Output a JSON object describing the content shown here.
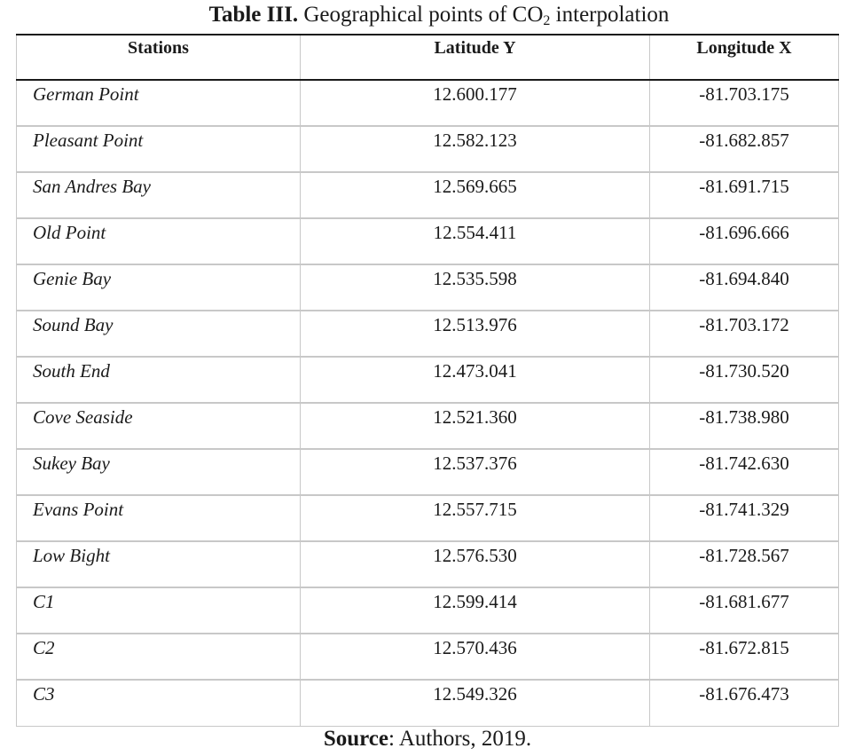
{
  "caption": {
    "label": "Table III.",
    "text_before_sub": "Geographical points of CO",
    "subscript": "2",
    "text_after_sub": " interpolation"
  },
  "table": {
    "headers": [
      "Stations",
      "Latitude Y",
      "Longitude X"
    ],
    "rows": [
      {
        "station": "German Point",
        "latitude": "12.600.177",
        "longitude": "-81.703.175"
      },
      {
        "station": "Pleasant Point",
        "latitude": "12.582.123",
        "longitude": "-81.682.857"
      },
      {
        "station": "San Andres Bay",
        "latitude": "12.569.665",
        "longitude": "-81.691.715"
      },
      {
        "station": "Old Point",
        "latitude": "12.554.411",
        "longitude": "-81.696.666"
      },
      {
        "station": "Genie Bay",
        "latitude": "12.535.598",
        "longitude": "-81.694.840"
      },
      {
        "station": "Sound Bay",
        "latitude": "12.513.976",
        "longitude": "-81.703.172"
      },
      {
        "station": "South End",
        "latitude": "12.473.041",
        "longitude": "-81.730.520"
      },
      {
        "station": "Cove Seaside",
        "latitude": "12.521.360",
        "longitude": "-81.738.980"
      },
      {
        "station": "Sukey Bay",
        "latitude": "12.537.376",
        "longitude": "-81.742.630"
      },
      {
        "station": "Evans Point",
        "latitude": "12.557.715",
        "longitude": "-81.741.329"
      },
      {
        "station": "Low Bight",
        "latitude": "12.576.530",
        "longitude": "-81.728.567"
      },
      {
        "station": "C1",
        "latitude": "12.599.414",
        "longitude": "-81.681.677"
      },
      {
        "station": "C2",
        "latitude": "12.570.436",
        "longitude": "-81.672.815"
      },
      {
        "station": "C3",
        "latitude": "12.549.326",
        "longitude": "-81.676.473"
      }
    ]
  },
  "source": {
    "label": "Source",
    "text": ": Authors, 2019."
  }
}
